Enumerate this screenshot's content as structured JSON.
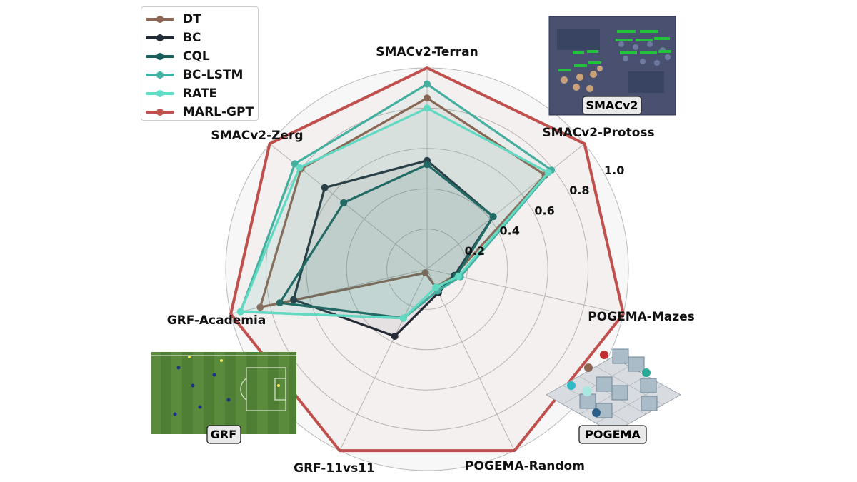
{
  "chart_data": {
    "type": "radar",
    "title": "",
    "axes": [
      "SMACv2-Terran",
      "SMACv2-Protoss",
      "POGEMA-Mazes",
      "POGEMA-Random",
      "GRF-11vs11",
      "GRF-Academia",
      "SMACv2-Zerg"
    ],
    "rlim": [
      0,
      1.0
    ],
    "radial_ticks": [
      "0.2",
      "0.4",
      "0.6",
      "0.8",
      "1.0"
    ],
    "radial_tick_values": [
      0.2,
      0.4,
      0.6,
      0.8,
      1.0
    ],
    "grid": true,
    "legend_position": "top-left",
    "series": [
      {
        "name": "DT",
        "color": "#8c6450",
        "values": [
          0.85,
          0.75,
          0.14,
          0.1,
          0.02,
          0.85,
          0.8
        ]
      },
      {
        "name": "BC",
        "color": "#1f2a36",
        "values": [
          0.54,
          0.42,
          0.14,
          0.13,
          0.37,
          0.68,
          0.65
        ]
      },
      {
        "name": "CQL",
        "color": "#155e5a",
        "values": [
          0.52,
          0.42,
          0.15,
          0.12,
          0.27,
          0.75,
          0.53
        ]
      },
      {
        "name": "BC-LSTM",
        "color": "#3fb4a3",
        "values": [
          0.92,
          0.79,
          0.17,
          0.12,
          0.27,
          0.95,
          0.84
        ]
      },
      {
        "name": "RATE",
        "color": "#5ee0c8",
        "values": [
          0.8,
          0.77,
          0.16,
          0.1,
          0.27,
          0.95,
          0.81
        ]
      },
      {
        "name": "MARL-GPT",
        "color": "#c0504d",
        "values": [
          1.0,
          1.0,
          1.0,
          1.0,
          1.0,
          1.0,
          1.0
        ]
      }
    ]
  },
  "thumbnails": {
    "smacv2": "SMACv2",
    "grf": "GRF",
    "pogema": "POGEMA"
  }
}
